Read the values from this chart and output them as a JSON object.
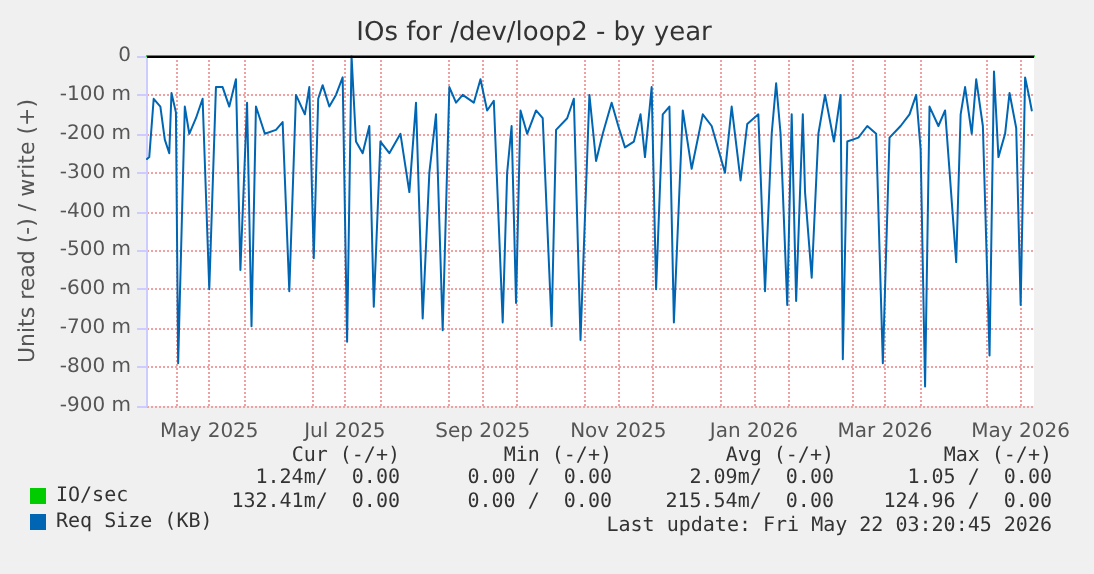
{
  "chart_data": {
    "type": "line",
    "title": "IOs for /dev/loop2 - by year",
    "ylabel": "Units read (-) / write (+)",
    "xlim": [
      "2025-04-18",
      "2026-05-22"
    ],
    "xticks": [
      {
        "value": "2025-05-01",
        "label": null
      },
      {
        "value": "2025-05-16",
        "label": "May 2025"
      },
      {
        "value": "2025-06-01",
        "label": null
      },
      {
        "value": "2025-07-01",
        "label": null
      },
      {
        "value": "2025-07-16",
        "label": "Jul 2025"
      },
      {
        "value": "2025-08-01",
        "label": null
      },
      {
        "value": "2025-09-01",
        "label": null
      },
      {
        "value": "2025-09-16",
        "label": "Sep 2025"
      },
      {
        "value": "2025-10-01",
        "label": null
      },
      {
        "value": "2025-11-01",
        "label": null
      },
      {
        "value": "2025-11-16",
        "label": "Nov 2025"
      },
      {
        "value": "2025-12-01",
        "label": null
      },
      {
        "value": "2026-01-01",
        "label": null
      },
      {
        "value": "2026-01-16",
        "label": "Jan 2026"
      },
      {
        "value": "2026-02-01",
        "label": null
      },
      {
        "value": "2026-03-01",
        "label": null
      },
      {
        "value": "2026-03-16",
        "label": "Mar 2026"
      },
      {
        "value": "2026-04-01",
        "label": null
      },
      {
        "value": "2026-05-01",
        "label": null
      },
      {
        "value": "2026-05-16",
        "label": "May 2026"
      }
    ],
    "ylim": [
      -900,
      0
    ],
    "yticks": [
      {
        "value": -900,
        "label": "-900 m"
      },
      {
        "value": -800,
        "label": "-800 m"
      },
      {
        "value": -700,
        "label": "-700 m"
      },
      {
        "value": -600,
        "label": "-600 m"
      },
      {
        "value": -500,
        "label": "-500 m"
      },
      {
        "value": -400,
        "label": "-400 m"
      },
      {
        "value": -300,
        "label": "-300 m"
      },
      {
        "value": -200,
        "label": "-200 m"
      },
      {
        "value": -100,
        "label": "-100 m"
      },
      0
    ],
    "grid": true,
    "legend": "bottom left",
    "marker": "none",
    "line_style": "solid",
    "ref_lines": [
      {
        "axis": "y",
        "value": 0,
        "color": "#000000"
      }
    ],
    "series": [
      {
        "name": "IO/sec",
        "color": "#00cc00",
        "x": [
          "2025-04-18",
          "2026-05-22"
        ],
        "values": [
          0,
          0
        ]
      },
      {
        "name": "Req Size (KB)",
        "color": "#0066b3",
        "x": [
          "2025-04-18",
          "2025-04-19",
          "2025-04-21",
          "2025-04-24",
          "2025-04-26",
          "2025-04-28",
          "2025-04-29",
          "2025-05-01",
          "2025-05-02",
          "2025-05-05",
          "2025-05-07",
          "2025-05-10",
          "2025-05-13",
          "2025-05-16",
          "2025-05-19",
          "2025-05-22",
          "2025-05-25",
          "2025-05-28",
          "2025-05-30",
          "2025-06-02",
          "2025-06-04",
          "2025-06-06",
          "2025-06-10",
          "2025-06-15",
          "2025-06-18",
          "2025-06-21",
          "2025-06-24",
          "2025-06-28",
          "2025-06-30",
          "2025-07-02",
          "2025-07-04",
          "2025-07-06",
          "2025-07-09",
          "2025-07-12",
          "2025-07-15",
          "2025-07-17",
          "2025-07-19",
          "2025-07-21",
          "2025-07-24",
          "2025-07-27",
          "2025-07-29",
          "2025-08-01",
          "2025-08-05",
          "2025-08-10",
          "2025-08-14",
          "2025-08-17",
          "2025-08-20",
          "2025-08-23",
          "2025-08-26",
          "2025-08-29",
          "2025-09-01",
          "2025-09-04",
          "2025-09-07",
          "2025-09-12",
          "2025-09-15",
          "2025-09-18",
          "2025-09-21",
          "2025-09-25",
          "2025-09-27",
          "2025-09-29",
          "2025-10-01",
          "2025-10-03",
          "2025-10-06",
          "2025-10-10",
          "2025-10-13",
          "2025-10-17",
          "2025-10-19",
          "2025-10-24",
          "2025-10-27",
          "2025-10-30",
          "2025-11-03",
          "2025-11-06",
          "2025-11-09",
          "2025-11-13",
          "2025-11-16",
          "2025-11-19",
          "2025-11-23",
          "2025-11-26",
          "2025-11-28",
          "2025-12-01",
          "2025-12-03",
          "2025-12-06",
          "2025-12-09",
          "2025-12-11",
          "2025-12-15",
          "2025-12-19",
          "2025-12-24",
          "2025-12-28",
          "2026-01-03",
          "2026-01-06",
          "2026-01-10",
          "2026-01-13",
          "2026-01-18",
          "2026-01-21",
          "2026-01-24",
          "2026-01-26",
          "2026-01-28",
          "2026-01-31",
          "2026-02-02",
          "2026-02-04",
          "2026-02-07",
          "2026-02-08",
          "2026-02-11",
          "2026-02-14",
          "2026-02-17",
          "2026-02-21",
          "2026-02-24",
          "2026-02-25",
          "2026-02-27",
          "2026-03-04",
          "2026-03-08",
          "2026-03-12",
          "2026-03-15",
          "2026-03-18",
          "2026-03-23",
          "2026-03-27",
          "2026-03-30",
          "2026-04-01",
          "2026-04-03",
          "2026-04-05",
          "2026-04-09",
          "2026-04-12",
          "2026-04-17",
          "2026-04-19",
          "2026-04-21",
          "2026-04-24",
          "2026-04-26",
          "2026-04-29",
          "2026-05-02",
          "2026-05-04",
          "2026-05-06",
          "2026-05-09",
          "2026-05-11",
          "2026-05-14",
          "2026-05-16",
          "2026-05-18",
          "2026-05-20",
          "2026-05-21"
        ],
        "values": [
          -265,
          -260,
          -110,
          -130,
          -215,
          -250,
          -95,
          -145,
          -790,
          -130,
          -200,
          -160,
          -110,
          -600,
          -80,
          -80,
          -130,
          -60,
          -550,
          -120,
          -695,
          -130,
          -200,
          -190,
          -170,
          -605,
          -100,
          -150,
          -80,
          -520,
          -110,
          -75,
          -130,
          -100,
          -55,
          -735,
          0,
          -220,
          -250,
          -180,
          -645,
          -220,
          -250,
          -200,
          -350,
          -120,
          -675,
          -300,
          -150,
          -705,
          -80,
          -120,
          -100,
          -120,
          -60,
          -140,
          -115,
          -685,
          -300,
          -180,
          -635,
          -140,
          -200,
          -140,
          -160,
          -695,
          -190,
          -160,
          -110,
          -730,
          -100,
          -270,
          -200,
          -120,
          -180,
          -235,
          -220,
          -150,
          -260,
          -80,
          -600,
          -150,
          -130,
          -685,
          -140,
          -290,
          -150,
          -180,
          -300,
          -130,
          -320,
          -175,
          -150,
          -605,
          -200,
          -70,
          -200,
          -640,
          -150,
          -630,
          -150,
          -350,
          -570,
          -200,
          -100,
          -220,
          -100,
          -780,
          -220,
          -210,
          -180,
          -200,
          -790,
          -210,
          -180,
          -150,
          -100,
          -240,
          -850,
          -130,
          -180,
          -140,
          -530,
          -150,
          -80,
          -200,
          -60,
          -180,
          -770,
          -40,
          -260,
          -200,
          -95,
          -185,
          -640,
          -55,
          -110,
          -140
        ]
      }
    ],
    "annotations": [
      "Cur (-/+)",
      "Min (-/+)",
      "Avg (-/+)",
      "Max (-/+)",
      "1.24m/  0.00",
      "0.00 /  0.00",
      "2.09m/  0.00",
      "1.05 /  0.00",
      "132.41m/  0.00",
      "0.00 /  0.00",
      "215.54m/  0.00",
      "124.96 /  0.00",
      "Last update: Fri May 22 03:20:45 2026"
    ]
  }
}
